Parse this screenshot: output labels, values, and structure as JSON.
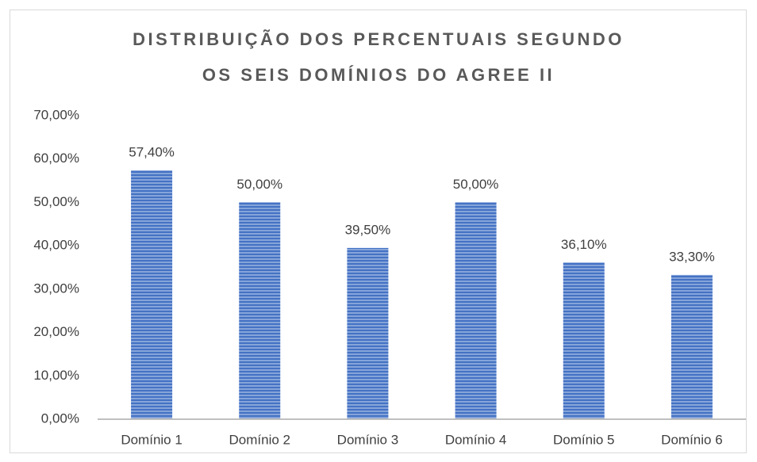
{
  "chart_data": {
    "type": "bar",
    "title": [
      "DISTRIBUIÇÃO DOS PERCENTUAIS SEGUNDO",
      "OS SEIS DOMÍNIOS DO AGREE II"
    ],
    "categories": [
      "Domínio 1",
      "Domínio 2",
      "Domínio 3",
      "Domínio 4",
      "Domínio 5",
      "Domínio 6"
    ],
    "values": [
      57.4,
      50,
      39.5,
      50,
      36.1,
      33.3
    ],
    "value_labels": [
      "57,40%",
      "50,00%",
      "39,50%",
      "50,00%",
      "36,10%",
      "33,30%"
    ],
    "color": "#4472c4",
    "ylim": [
      0,
      70
    ],
    "yticks": [
      {
        "value": 0,
        "label": "0,00%"
      },
      {
        "value": 10,
        "label": "10,00%"
      },
      {
        "value": 20,
        "label": "20,00%"
      },
      {
        "value": 30,
        "label": "30,00%"
      },
      {
        "value": 40,
        "label": "40,00%"
      },
      {
        "value": 50,
        "label": "50,00%"
      },
      {
        "value": 60,
        "label": "60,00%"
      },
      {
        "value": 70,
        "label": "70,00%"
      }
    ],
    "grid": false
  }
}
